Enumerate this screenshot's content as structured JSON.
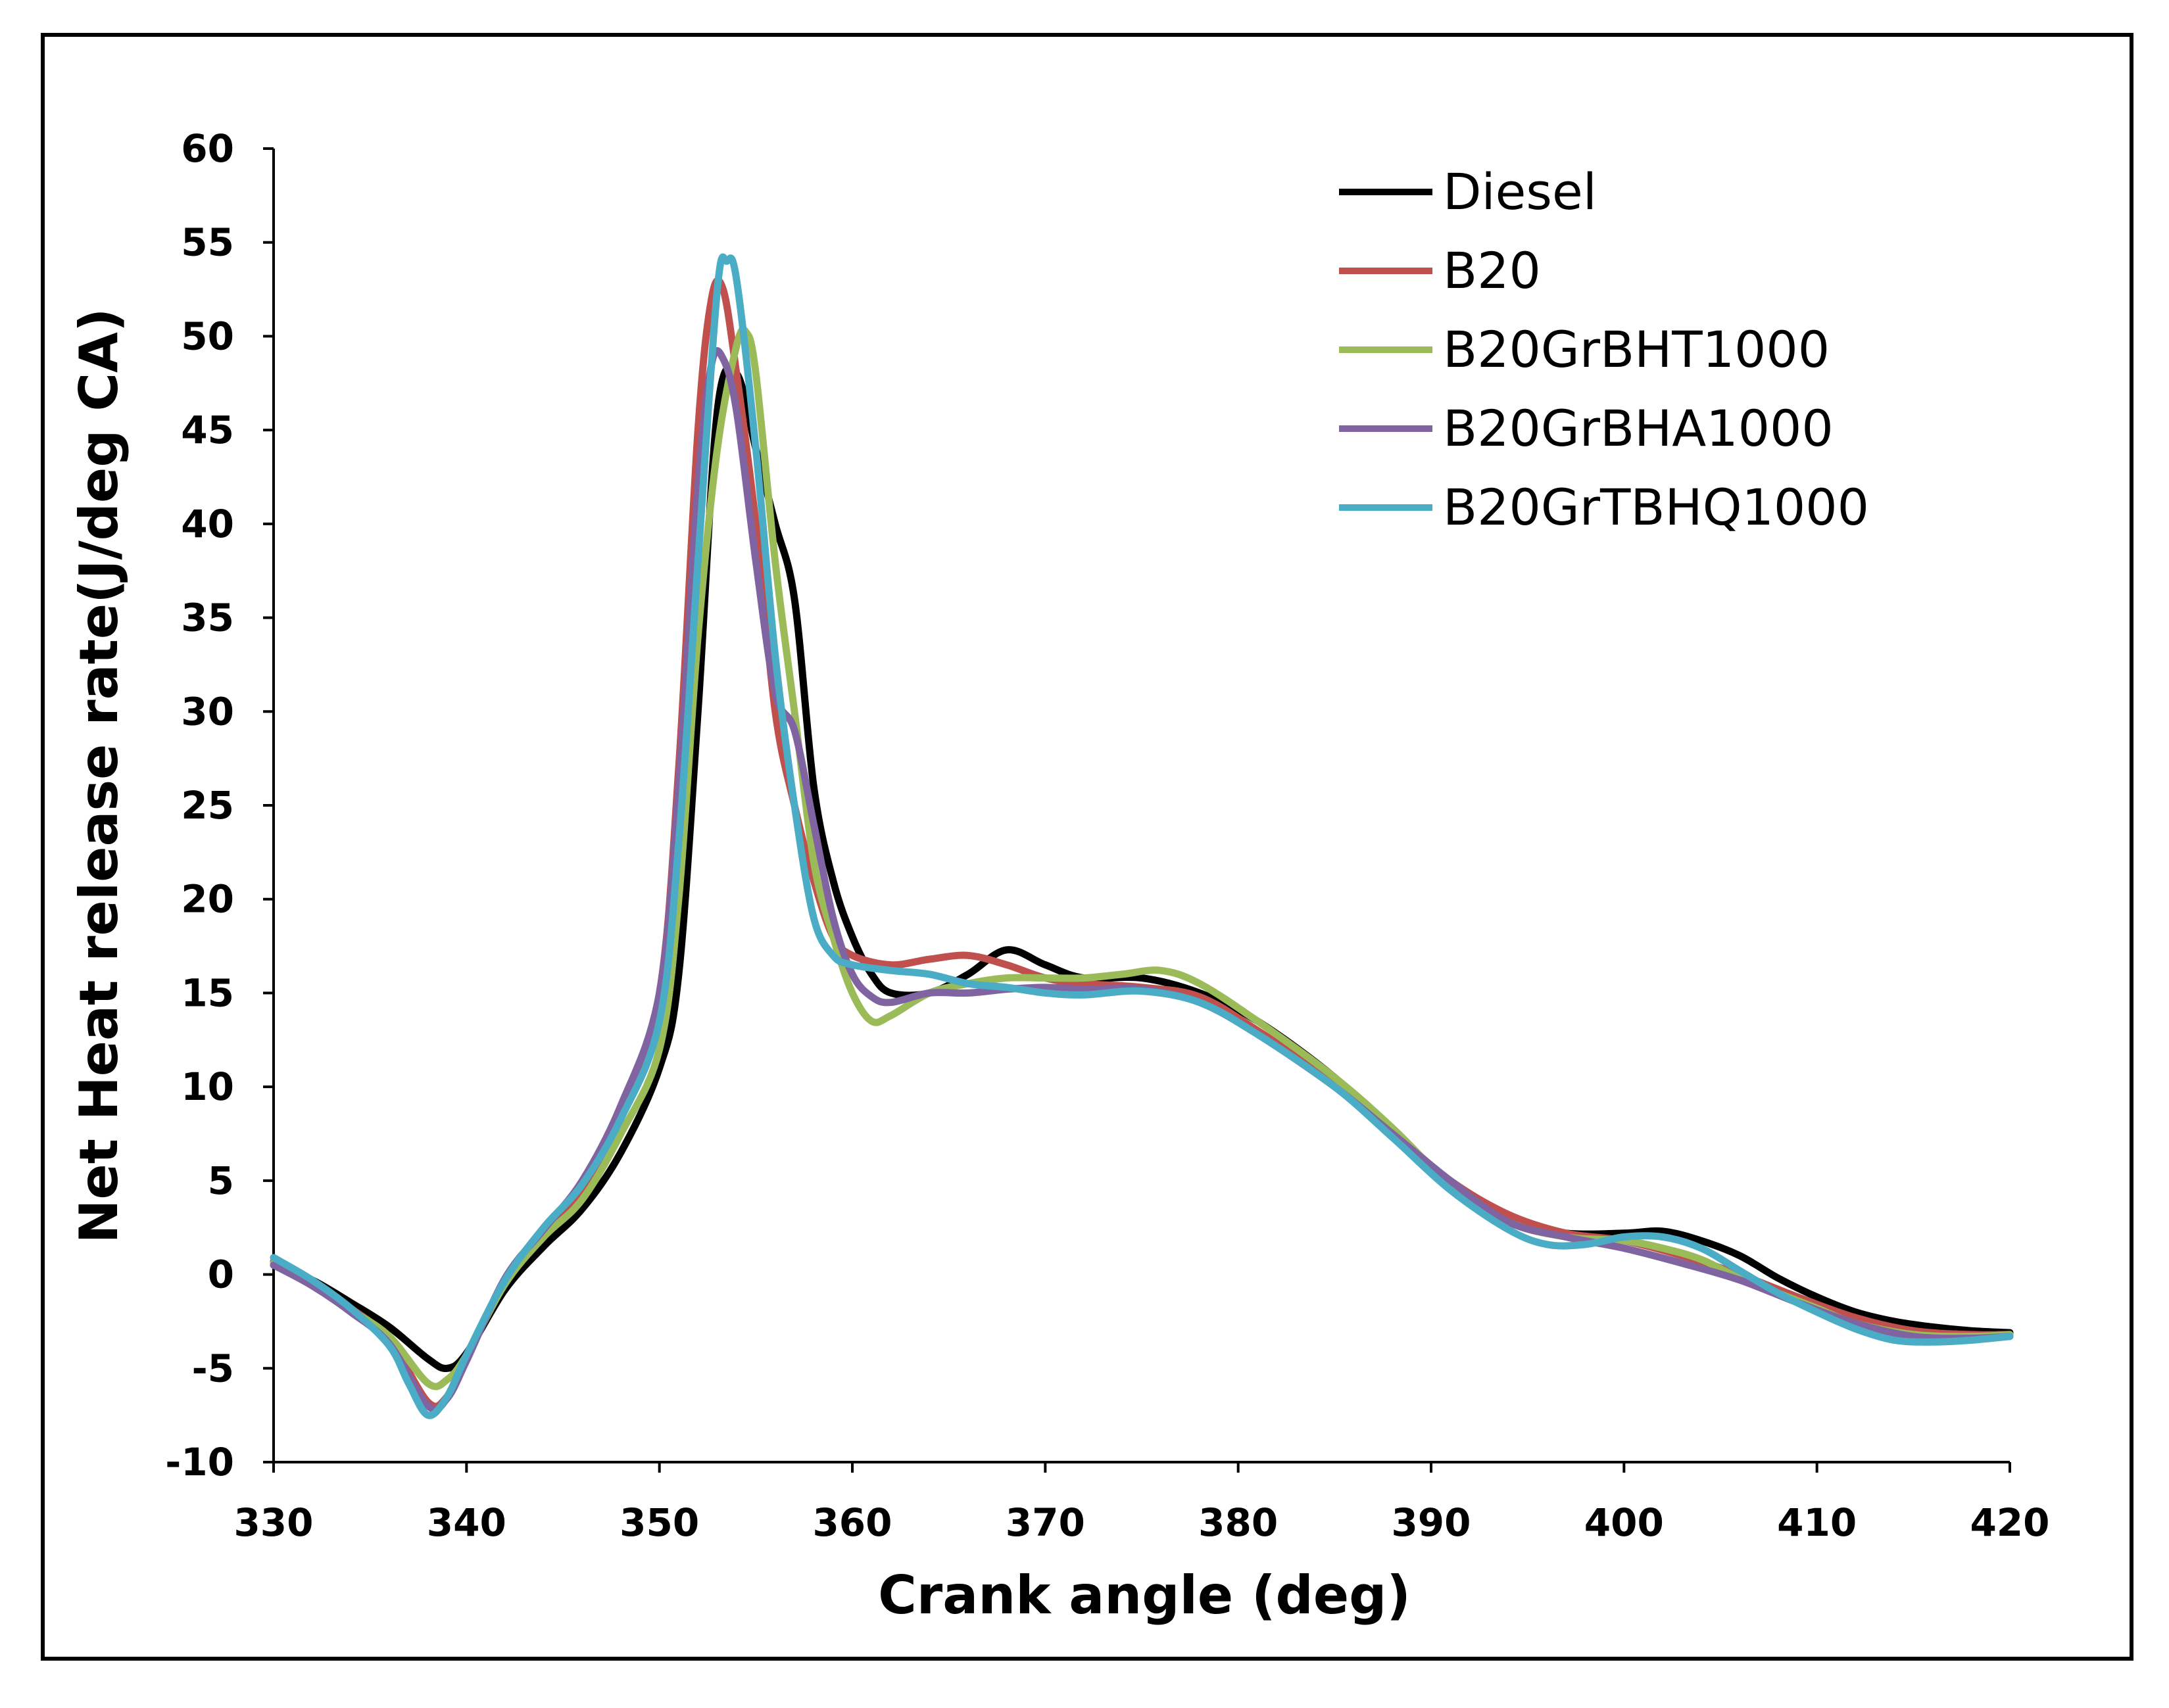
{
  "chart_data": {
    "type": "line",
    "title": "",
    "xlabel": "Crank angle (deg)",
    "ylabel": "Net Heat release rate(J/deg CA)",
    "xlim": [
      330,
      420
    ],
    "ylim": [
      -10,
      60
    ],
    "xticks": [
      330,
      340,
      350,
      360,
      370,
      380,
      390,
      400,
      410,
      420
    ],
    "yticks": [
      -10,
      -5,
      0,
      5,
      10,
      15,
      20,
      25,
      30,
      35,
      40,
      45,
      50,
      55,
      60
    ],
    "grid": false,
    "legend_position": "top-right",
    "series": [
      {
        "name": "Diesel",
        "color": "#000000",
        "points": [
          [
            330,
            0.5
          ],
          [
            332,
            -0.3
          ],
          [
            334,
            -1.5
          ],
          [
            336,
            -2.8
          ],
          [
            338,
            -4.5
          ],
          [
            339,
            -5.0
          ],
          [
            340,
            -4.2
          ],
          [
            342,
            -0.8
          ],
          [
            344,
            1.5
          ],
          [
            346,
            3.5
          ],
          [
            348,
            6.5
          ],
          [
            350,
            11
          ],
          [
            351,
            16
          ],
          [
            352,
            30
          ],
          [
            353,
            46
          ],
          [
            354,
            48
          ],
          [
            355,
            44
          ],
          [
            356,
            40
          ],
          [
            357,
            36
          ],
          [
            358,
            26
          ],
          [
            359,
            21
          ],
          [
            360,
            18
          ],
          [
            361,
            16
          ],
          [
            362,
            15
          ],
          [
            364,
            15
          ],
          [
            366,
            16
          ],
          [
            368,
            17.3
          ],
          [
            370,
            16.5
          ],
          [
            372,
            15.8
          ],
          [
            375,
            15.8
          ],
          [
            378,
            15
          ],
          [
            381,
            13.5
          ],
          [
            385,
            10.5
          ],
          [
            388,
            7.5
          ],
          [
            391,
            4.8
          ],
          [
            394,
            2.8
          ],
          [
            397,
            2.2
          ],
          [
            400,
            2.2
          ],
          [
            402,
            2.3
          ],
          [
            404,
            1.8
          ],
          [
            406,
            1.0
          ],
          [
            408,
            -0.2
          ],
          [
            410,
            -1.2
          ],
          [
            412,
            -2.0
          ],
          [
            414,
            -2.5
          ],
          [
            416,
            -2.8
          ],
          [
            418,
            -3.0
          ],
          [
            420,
            -3.1
          ]
        ]
      },
      {
        "name": "B20",
        "color": "#c0504d",
        "points": [
          [
            330,
            0.7
          ],
          [
            332,
            -0.5
          ],
          [
            334,
            -1.8
          ],
          [
            336,
            -3.5
          ],
          [
            338,
            -6.8
          ],
          [
            339,
            -6.5
          ],
          [
            340,
            -4.5
          ],
          [
            342,
            -0.3
          ],
          [
            344,
            2.2
          ],
          [
            346,
            4.5
          ],
          [
            348,
            8.5
          ],
          [
            350,
            15
          ],
          [
            351,
            27
          ],
          [
            352,
            45
          ],
          [
            352.7,
            52
          ],
          [
            353.3,
            52.5
          ],
          [
            354,
            48
          ],
          [
            355,
            40
          ],
          [
            356,
            30
          ],
          [
            357,
            25
          ],
          [
            358,
            21
          ],
          [
            359,
            18
          ],
          [
            360,
            17
          ],
          [
            362,
            16.5
          ],
          [
            364,
            16.8
          ],
          [
            366,
            17
          ],
          [
            368,
            16.5
          ],
          [
            370,
            15.8
          ],
          [
            372,
            15.5
          ],
          [
            375,
            15.3
          ],
          [
            378,
            14.8
          ],
          [
            381,
            13
          ],
          [
            385,
            10.2
          ],
          [
            388,
            7.6
          ],
          [
            391,
            5.0
          ],
          [
            394,
            3.2
          ],
          [
            397,
            2.2
          ],
          [
            400,
            1.8
          ],
          [
            403,
            1.0
          ],
          [
            406,
            0
          ],
          [
            409,
            -1.2
          ],
          [
            412,
            -2.3
          ],
          [
            415,
            -3.0
          ],
          [
            418,
            -3.2
          ],
          [
            420,
            -3.2
          ]
        ]
      },
      {
        "name": "B20GrBHT1000",
        "color": "#9bbb59",
        "points": [
          [
            330,
            0.6
          ],
          [
            332,
            -0.6
          ],
          [
            334,
            -1.9
          ],
          [
            336,
            -3.3
          ],
          [
            338,
            -5.8
          ],
          [
            339,
            -5.6
          ],
          [
            340,
            -4.3
          ],
          [
            342,
            -0.5
          ],
          [
            344,
            2
          ],
          [
            346,
            4
          ],
          [
            348,
            7.5
          ],
          [
            350,
            12
          ],
          [
            351,
            20
          ],
          [
            352,
            34
          ],
          [
            353,
            44
          ],
          [
            354,
            49.5
          ],
          [
            354.5,
            50.2
          ],
          [
            355,
            48
          ],
          [
            356,
            38
          ],
          [
            357,
            30
          ],
          [
            358,
            22
          ],
          [
            359,
            18
          ],
          [
            360,
            15
          ],
          [
            361,
            13.5
          ],
          [
            362,
            13.8
          ],
          [
            364,
            15
          ],
          [
            366,
            15.5
          ],
          [
            368,
            15.8
          ],
          [
            370,
            15.8
          ],
          [
            372,
            15.8
          ],
          [
            374,
            16
          ],
          [
            376,
            16.2
          ],
          [
            378,
            15.5
          ],
          [
            381,
            13.5
          ],
          [
            385,
            10.5
          ],
          [
            388,
            7.8
          ],
          [
            391,
            4.8
          ],
          [
            394,
            2.8
          ],
          [
            397,
            2.0
          ],
          [
            400,
            1.8
          ],
          [
            402,
            1.4
          ],
          [
            404,
            0.8
          ],
          [
            406,
            -0.2
          ],
          [
            408,
            -1.0
          ],
          [
            410,
            -1.8
          ],
          [
            412,
            -2.6
          ],
          [
            415,
            -3.2
          ],
          [
            418,
            -3.3
          ],
          [
            420,
            -3.2
          ]
        ]
      },
      {
        "name": "B20GrBHA1000",
        "color": "#8064a2",
        "points": [
          [
            330,
            0.5
          ],
          [
            332,
            -0.6
          ],
          [
            334,
            -2
          ],
          [
            336,
            -3.7
          ],
          [
            338,
            -7.0
          ],
          [
            339,
            -6.6
          ],
          [
            340,
            -4.6
          ],
          [
            342,
            -0.2
          ],
          [
            344,
            2.4
          ],
          [
            346,
            5
          ],
          [
            348,
            9
          ],
          [
            350,
            15
          ],
          [
            351,
            26
          ],
          [
            352,
            42
          ],
          [
            352.7,
            48.5
          ],
          [
            353.3,
            48.8
          ],
          [
            354,
            46
          ],
          [
            355,
            38
          ],
          [
            356,
            31
          ],
          [
            357,
            29
          ],
          [
            358,
            24
          ],
          [
            359,
            19
          ],
          [
            360,
            16
          ],
          [
            361,
            14.8
          ],
          [
            362,
            14.5
          ],
          [
            364,
            15
          ],
          [
            366,
            15
          ],
          [
            368,
            15.2
          ],
          [
            370,
            15.3
          ],
          [
            372,
            15.2
          ],
          [
            375,
            15.2
          ],
          [
            378,
            14.5
          ],
          [
            381,
            12.8
          ],
          [
            385,
            10
          ],
          [
            388,
            7.5
          ],
          [
            391,
            5.0
          ],
          [
            394,
            2.8
          ],
          [
            397,
            2.0
          ],
          [
            400,
            1.4
          ],
          [
            403,
            0.6
          ],
          [
            406,
            -0.3
          ],
          [
            409,
            -1.5
          ],
          [
            412,
            -2.6
          ],
          [
            415,
            -3.3
          ],
          [
            418,
            -3.4
          ],
          [
            420,
            -3.3
          ]
        ]
      },
      {
        "name": "B20GrTBHQ1000",
        "color": "#4bacc6",
        "points": [
          [
            330,
            0.9
          ],
          [
            332,
            -0.3
          ],
          [
            334,
            -1.8
          ],
          [
            336,
            -3.8
          ],
          [
            337,
            -5.8
          ],
          [
            338,
            -7.5
          ],
          [
            339,
            -6.5
          ],
          [
            340,
            -4.3
          ],
          [
            342,
            -0.3
          ],
          [
            344,
            2.5
          ],
          [
            346,
            4.8
          ],
          [
            348,
            8.3
          ],
          [
            350,
            13.5
          ],
          [
            351,
            23
          ],
          [
            352,
            38
          ],
          [
            353,
            52.5
          ],
          [
            353.5,
            54
          ],
          [
            354,
            53
          ],
          [
            355,
            44
          ],
          [
            356,
            33
          ],
          [
            357,
            25
          ],
          [
            358,
            19
          ],
          [
            359,
            17
          ],
          [
            360,
            16.5
          ],
          [
            362,
            16.2
          ],
          [
            364,
            16
          ],
          [
            366,
            15.5
          ],
          [
            368,
            15.3
          ],
          [
            370,
            15
          ],
          [
            372,
            14.9
          ],
          [
            375,
            15.1
          ],
          [
            378,
            14.5
          ],
          [
            381,
            12.8
          ],
          [
            385,
            10
          ],
          [
            388,
            7.3
          ],
          [
            391,
            4.5
          ],
          [
            394,
            2.4
          ],
          [
            396,
            1.6
          ],
          [
            398,
            1.6
          ],
          [
            400,
            2.0
          ],
          [
            402,
            2.0
          ],
          [
            404,
            1.4
          ],
          [
            406,
            0.2
          ],
          [
            408,
            -1.0
          ],
          [
            410,
            -2.0
          ],
          [
            412,
            -2.9
          ],
          [
            414,
            -3.5
          ],
          [
            416,
            -3.6
          ],
          [
            418,
            -3.5
          ],
          [
            420,
            -3.3
          ]
        ]
      }
    ]
  }
}
